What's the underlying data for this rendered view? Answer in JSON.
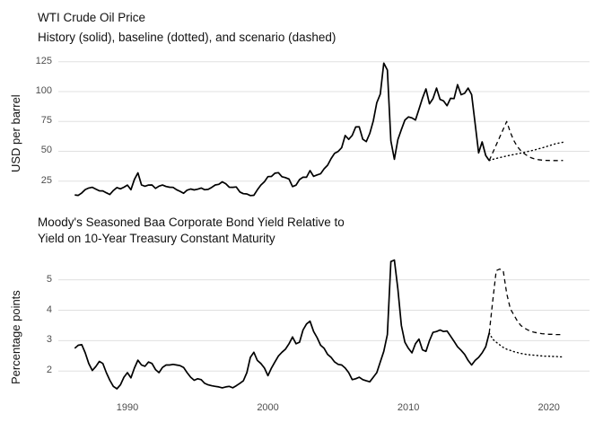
{
  "page": {
    "background": "#ffffff"
  },
  "colors": {
    "line": "#000000",
    "grid": "#e0e0e0",
    "tick_text": "#4d4d4d",
    "title_text": "#111111"
  },
  "chart_data": [
    {
      "type": "line",
      "title": "WTI Crude Oil Price",
      "subtitle": "History (solid), baseline (dotted), and scenario (dashed)",
      "ylabel": "USD per barrel",
      "xlabel": "",
      "frequency": "quarterly",
      "grid": "horizontal-only",
      "legend": "none",
      "ylim": [
        8,
        133
      ],
      "xlim": [
        1985.1,
        2022.9
      ],
      "yticks": [
        25,
        50,
        75,
        100,
        125
      ],
      "ytick_labels": [
        "25",
        "50",
        "75",
        "100",
        "125"
      ],
      "xticks": [
        1990,
        2000,
        2010,
        2020
      ],
      "xtick_labels": [
        "1990",
        "2000",
        "2010",
        "2020"
      ],
      "series": [
        {
          "name": "history",
          "style": "solid",
          "x_start": 1986.25,
          "x_step": 0.25,
          "values": [
            13.4,
            13.0,
            15.1,
            17.9,
            19.2,
            19.8,
            18.3,
            16.9,
            16.8,
            15.2,
            13.8,
            17.1,
            19.6,
            18.5,
            19.9,
            21.7,
            17.8,
            26.4,
            31.9,
            21.8,
            20.7,
            21.7,
            21.8,
            18.9,
            20.8,
            21.7,
            20.5,
            19.9,
            19.7,
            17.8,
            16.4,
            14.8,
            17.4,
            18.4,
            17.6,
            18.2,
            19.2,
            17.8,
            18.1,
            19.7,
            21.8,
            22.3,
            24.4,
            22.8,
            19.9,
            19.8,
            20.1,
            15.9,
            14.5,
            14.2,
            12.9,
            13.1,
            17.7,
            21.7,
            24.5,
            28.8,
            28.9,
            31.6,
            32.1,
            28.7,
            27.9,
            26.7,
            20.4,
            21.6,
            26.3,
            28.3,
            28.2,
            33.8,
            29.0,
            30.2,
            31.2,
            35.3,
            38.3,
            43.9,
            48.3,
            49.9,
            53.1,
            63.2,
            60.0,
            63.3,
            70.4,
            70.5,
            60.1,
            58.1,
            65.0,
            75.4,
            90.7,
            97.9,
            123.9,
            118.1,
            58.7,
            43.3,
            59.8,
            68.2,
            76.1,
            78.8,
            78.0,
            76.2,
            85.2,
            94.5,
            102.3,
            89.8,
            94.1,
            103.0,
            93.5,
            92.2,
            88.2,
            94.4,
            94.2,
            105.8,
            97.4,
            98.6,
            103.0,
            97.5,
            73.2,
            48.6,
            57.9,
            46.5,
            42.2
          ]
        },
        {
          "name": "baseline",
          "style": "dotted",
          "x_start": 2015.75,
          "x_step": 0.25,
          "values": [
            42.2,
            43.2,
            44.0,
            44.7,
            45.4,
            46.1,
            46.7,
            47.3,
            47.9,
            48.5,
            49.1,
            49.8,
            50.5,
            51.2,
            52.0,
            52.8,
            53.7,
            54.6,
            55.5,
            56.4,
            57.0,
            57.6
          ]
        },
        {
          "name": "scenario",
          "style": "dashed",
          "x_start": 2015.75,
          "x_step": 0.25,
          "values": [
            42.2,
            48.8,
            55.3,
            61.9,
            68.4,
            75.0,
            66.0,
            59.0,
            54.0,
            50.5,
            48.0,
            46.0,
            44.5,
            43.5,
            43.0,
            42.6,
            42.4,
            42.3,
            42.2,
            42.2,
            42.2,
            42.3
          ]
        }
      ]
    },
    {
      "type": "line",
      "title": "Moody's Seasoned Baa Corporate Bond Yield Relative to Yield on 10-Year Treasury Constant Maturity",
      "title_lines": [
        "Moody's Seasoned Baa Corporate Bond Yield Relative to",
        "Yield on 10-Year Treasury Constant Maturity"
      ],
      "subtitle": "",
      "ylabel": "Percentage points",
      "xlabel": "",
      "frequency": "quarterly",
      "grid": "horizontal-only",
      "legend": "none",
      "ylim": [
        1.0,
        5.8
      ],
      "xlim": [
        1985.1,
        2022.9
      ],
      "yticks": [
        2,
        3,
        4,
        5
      ],
      "ytick_labels": [
        "2",
        "3",
        "4",
        "5"
      ],
      "xticks": [
        1990,
        2000,
        2010,
        2020
      ],
      "xtick_labels": [
        "1990",
        "2000",
        "2010",
        "2020"
      ],
      "series": [
        {
          "name": "history",
          "style": "solid",
          "x_start": 1986.25,
          "x_step": 0.25,
          "values": [
            2.75,
            2.85,
            2.87,
            2.6,
            2.25,
            2.02,
            2.15,
            2.32,
            2.25,
            1.95,
            1.7,
            1.5,
            1.42,
            1.55,
            1.8,
            1.95,
            1.78,
            2.1,
            2.36,
            2.2,
            2.16,
            2.3,
            2.25,
            2.05,
            1.95,
            2.12,
            2.2,
            2.2,
            2.22,
            2.2,
            2.18,
            2.12,
            1.95,
            1.8,
            1.7,
            1.75,
            1.72,
            1.6,
            1.55,
            1.52,
            1.5,
            1.48,
            1.45,
            1.48,
            1.5,
            1.45,
            1.52,
            1.6,
            1.68,
            1.95,
            2.45,
            2.62,
            2.35,
            2.25,
            2.1,
            1.85,
            2.1,
            2.3,
            2.5,
            2.62,
            2.72,
            2.9,
            3.12,
            2.9,
            2.95,
            3.35,
            3.55,
            3.64,
            3.3,
            3.1,
            2.85,
            2.75,
            2.55,
            2.45,
            2.3,
            2.22,
            2.2,
            2.1,
            1.95,
            1.72,
            1.75,
            1.8,
            1.72,
            1.68,
            1.65,
            1.8,
            1.95,
            2.3,
            2.65,
            3.2,
            5.6,
            5.65,
            4.7,
            3.5,
            2.95,
            2.75,
            2.6,
            2.9,
            3.05,
            2.7,
            2.65,
            3.0,
            3.27,
            3.3,
            3.35,
            3.3,
            3.32,
            3.15,
            2.98,
            2.8,
            2.68,
            2.55,
            2.35,
            2.2,
            2.35,
            2.45,
            2.6,
            2.8,
            3.25
          ]
        },
        {
          "name": "baseline",
          "style": "dotted",
          "x_start": 2015.75,
          "x_step": 0.25,
          "values": [
            3.25,
            3.05,
            2.95,
            2.86,
            2.78,
            2.72,
            2.68,
            2.64,
            2.61,
            2.58,
            2.56,
            2.54,
            2.53,
            2.52,
            2.51,
            2.5,
            2.49,
            2.49,
            2.48,
            2.48,
            2.47,
            2.47
          ]
        },
        {
          "name": "scenario",
          "style": "dashed",
          "x_start": 2015.75,
          "x_step": 0.25,
          "values": [
            3.25,
            4.3,
            5.3,
            5.35,
            5.3,
            4.55,
            4.05,
            3.85,
            3.65,
            3.5,
            3.42,
            3.35,
            3.3,
            3.27,
            3.25,
            3.23,
            3.22,
            3.21,
            3.21,
            3.2,
            3.2,
            3.2
          ]
        }
      ]
    }
  ]
}
